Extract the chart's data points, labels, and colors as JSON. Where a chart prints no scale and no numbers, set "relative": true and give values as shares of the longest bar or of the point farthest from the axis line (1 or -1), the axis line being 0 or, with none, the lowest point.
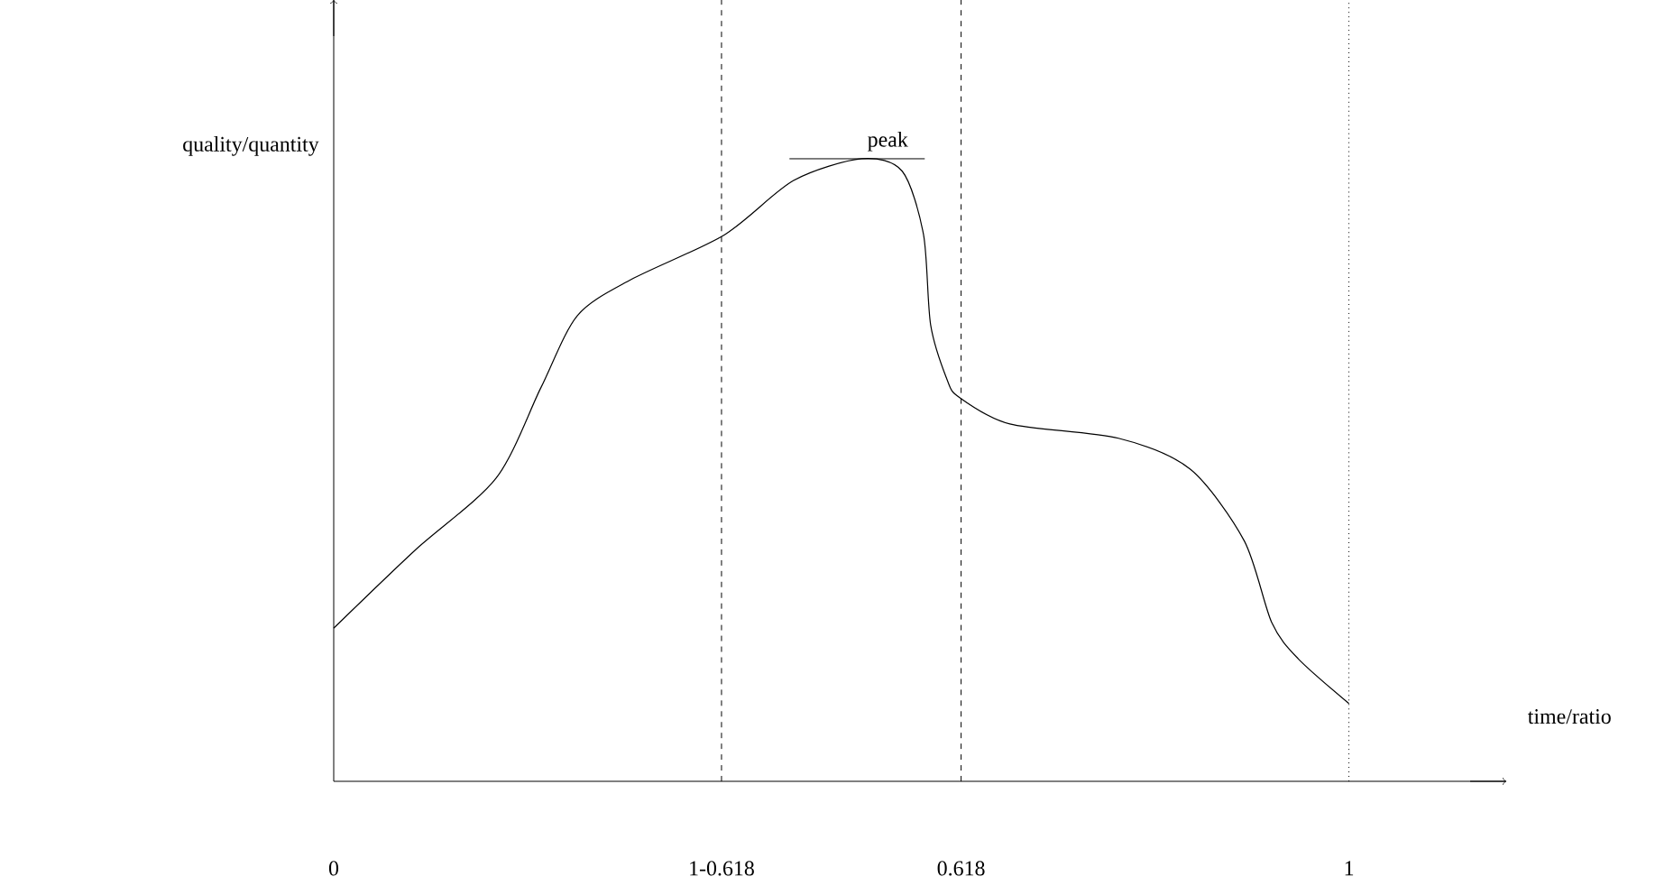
{
  "chart_data": {
    "type": "line",
    "relative": true,
    "xlabel": "time/ratio",
    "ylabel": "quality/quantity",
    "tick_labels": "x",
    "color": "#000000",
    "x": [
      0,
      0.08,
      0.16,
      0.204,
      0.24,
      0.293,
      0.385,
      0.453,
      0.52,
      0.56,
      0.581,
      0.588,
      0.604,
      0.616,
      0.666,
      0.773,
      0.844,
      0.897,
      0.924,
      0.95,
      1.0
    ],
    "values": [
      0.246,
      0.371,
      0.487,
      0.632,
      0.748,
      0.806,
      0.878,
      0.965,
      1.0,
      0.98,
      0.878,
      0.733,
      0.646,
      0.617,
      0.574,
      0.551,
      0.501,
      0.386,
      0.255,
      0.197,
      0.125
    ],
    "xlim": [
      0,
      1.155
    ],
    "xticks": [
      0,
      {
        "value": 0.382,
        "label": "1-0.618"
      },
      0.618,
      1
    ],
    "ref_lines": [
      {
        "axis": "x",
        "value": 0.382,
        "line_style": "dashed"
      },
      {
        "axis": "x",
        "value": 0.618,
        "line_style": "dashed"
      },
      {
        "axis": "x",
        "value": 1,
        "line_style": "dotted"
      }
    ],
    "annotations": [
      {
        "text": "peak",
        "x": 0.52,
        "y": 1.0
      }
    ]
  }
}
